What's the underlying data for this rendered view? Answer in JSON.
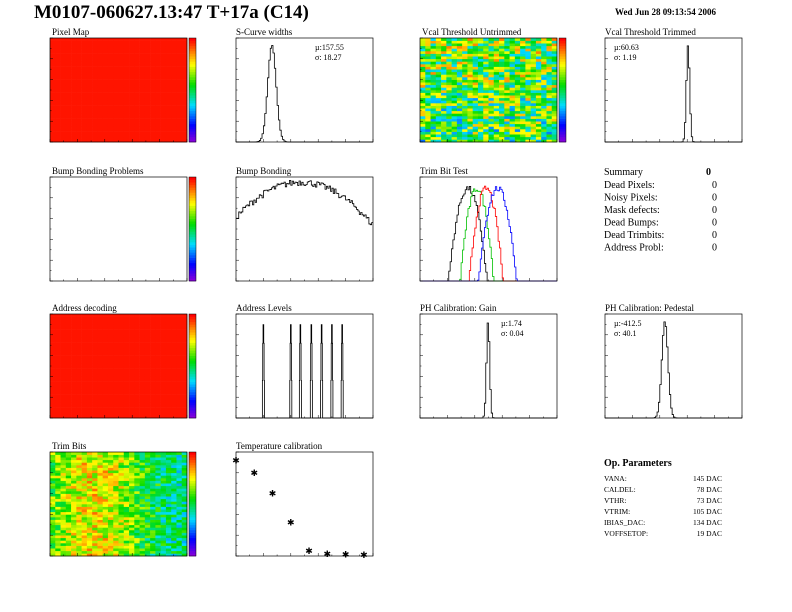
{
  "header": {
    "title": "M0107-060627.13:47 T+17a (C14)",
    "date": "Wed Jun 28 09:13:54 2006"
  },
  "summary": {
    "title": "Summary",
    "total": "0",
    "rows": [
      {
        "label": "Dead Pixels:",
        "value": "0"
      },
      {
        "label": "Noisy Pixels:",
        "value": "0"
      },
      {
        "label": "Mask defects:",
        "value": "0"
      },
      {
        "label": "Dead Bumps:",
        "value": "0"
      },
      {
        "label": "Dead Trimbits:",
        "value": "0"
      },
      {
        "label": "Address Probl:",
        "value": "0"
      }
    ]
  },
  "op_parameters": {
    "title": "Op. Parameters",
    "rows": [
      {
        "label": "VANA:",
        "value": "145 DAC"
      },
      {
        "label": "CALDEL:",
        "value": "78 DAC"
      },
      {
        "label": "VTHR:",
        "value": "73 DAC"
      },
      {
        "label": "VTRIM:",
        "value": "105 DAC"
      },
      {
        "label": "IBIAS_DAC:",
        "value": "134 DAC"
      },
      {
        "label": "VOFFSETOP:",
        "value": "19 DAC"
      }
    ]
  },
  "chart_data": [
    {
      "id": "pixel-map",
      "type": "heatmap",
      "title": "Pixel Map",
      "xlim": [
        0,
        52
      ],
      "ylim": [
        0,
        80
      ],
      "zlim": [
        0,
        10
      ],
      "pattern": "uniform-max",
      "colorbar": true
    },
    {
      "id": "s-curve",
      "type": "histogram",
      "title": "S-Curve widths",
      "xlim": [
        0,
        600
      ],
      "ylim": [
        0,
        6500
      ],
      "mean": 157.55,
      "sigma": 18.27,
      "stats": [
        "µ:157.55",
        "σ: 18.27"
      ]
    },
    {
      "id": "vcal-untrimmed",
      "type": "heatmap",
      "title": "Vcal Threshold Untrimmed",
      "xlim": [
        0,
        52
      ],
      "ylim": [
        0,
        80
      ],
      "zlim": [
        80,
        120
      ],
      "pattern": "noisy",
      "colorbar": true
    },
    {
      "id": "vcal-trimmed",
      "type": "histogram",
      "title": "Vcal Threshold Trimmed",
      "xlim": [
        0,
        100
      ],
      "ylim": [
        0,
        2000
      ],
      "mean": 60.63,
      "sigma": 1.19,
      "stats": [
        "µ:60.63",
        "σ: 1.19"
      ]
    },
    {
      "id": "bump-problems",
      "type": "heatmap",
      "title": "Bump Bonding Problems",
      "xlim": [
        0,
        52
      ],
      "ylim": [
        0,
        80
      ],
      "zlim": [
        0,
        1
      ],
      "pattern": "empty",
      "colorbar": true
    },
    {
      "id": "bump-bonding",
      "type": "histogram",
      "title": "Bump Bonding",
      "log": true,
      "xlim": [
        -1.0,
        -0.8
      ],
      "ylim": [
        0.5,
        300
      ],
      "mean": -0.905,
      "sigma": 0.035
    },
    {
      "id": "trim-bit-test",
      "type": "histogram",
      "title": "Trim Bit Test",
      "log": true,
      "xlim": [
        0,
        60
      ],
      "ylim": [
        0.5,
        300
      ],
      "series": [
        {
          "color": "#000000",
          "mean": 21,
          "sigma": 2.5
        },
        {
          "color": "#00c000",
          "mean": 25,
          "sigma": 2.2
        },
        {
          "color": "#ff0000",
          "mean": 29,
          "sigma": 2.2
        },
        {
          "color": "#0000ff",
          "mean": 34,
          "sigma": 2.5
        }
      ]
    },
    {
      "id": "address-decoding",
      "type": "heatmap",
      "title": "Address decoding",
      "xlim": [
        0,
        52
      ],
      "ylim": [
        0,
        80
      ],
      "zlim": [
        0,
        1
      ],
      "pattern": "uniform-max",
      "colorbar": true
    },
    {
      "id": "address-levels",
      "type": "histogram",
      "title": "Address Levels",
      "log": true,
      "xlim": [
        -1000,
        1000
      ],
      "ylim": [
        0.5,
        3000
      ],
      "peaks": [
        -600,
        -200,
        -60,
        100,
        250,
        400,
        550
      ]
    },
    {
      "id": "ph-gain",
      "type": "histogram",
      "title": "PH Calibration: Gain",
      "xlim": [
        0,
        3.5
      ],
      "ylim": [
        0,
        12500
      ],
      "mean": 1.74,
      "sigma": 0.04,
      "stats": [
        "µ:1.74",
        "σ: 0.04"
      ]
    },
    {
      "id": "ph-pedestal",
      "type": "histogram",
      "title": "PH Calibration: Pedestal",
      "xlim": [
        -1200,
        600
      ],
      "ylim": [
        0,
        2000
      ],
      "mean": -412.5,
      "sigma": 40.1,
      "stats": [
        "µ:-412.5",
        "σ: 40.1"
      ]
    },
    {
      "id": "trim-bits",
      "type": "heatmap",
      "title": "Trim Bits",
      "xlim": [
        0,
        52
      ],
      "ylim": [
        0,
        80
      ],
      "zlim": [
        0,
        15
      ],
      "pattern": "noisy-mid",
      "colorbar": true
    },
    {
      "id": "temperature",
      "type": "scatter",
      "title": "Temperature calibration",
      "xlim": [
        0,
        7.5
      ],
      "ylim": [
        0,
        1250
      ],
      "x": [
        0,
        1,
        2,
        3,
        4,
        5,
        6,
        7
      ],
      "y": [
        1150,
        1000,
        750,
        400,
        60,
        25,
        20,
        15
      ]
    }
  ]
}
